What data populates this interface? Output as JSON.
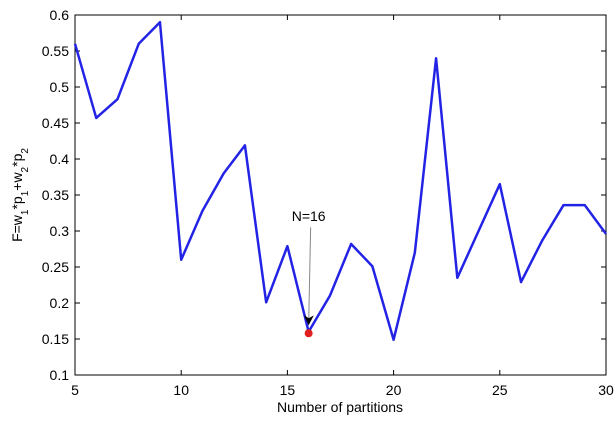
{
  "chart_data": {
    "type": "line",
    "xlabel": "Number of partitions",
    "ylabel_parts": [
      "F=w",
      "1",
      "*p",
      "1",
      "+w",
      "2",
      "*p",
      "2"
    ],
    "x": [
      5,
      6,
      7,
      8,
      9,
      10,
      11,
      12,
      13,
      14,
      15,
      16,
      17,
      18,
      19,
      20,
      21,
      22,
      23,
      24,
      25,
      26,
      27,
      28,
      29,
      30
    ],
    "series": [
      {
        "color": "#2323e6",
        "values": [
          0.56,
          0.457,
          0.483,
          0.56,
          0.59,
          0.26,
          0.328,
          0.38,
          0.419,
          0.201,
          0.279,
          0.16,
          0.21,
          0.282,
          0.251,
          0.149,
          0.27,
          0.54,
          0.235,
          0.3,
          0.365,
          0.229,
          0.287,
          0.336,
          0.336,
          0.296
        ]
      }
    ],
    "highlight": {
      "text": "N=16",
      "x": 16,
      "y": 0.158,
      "color": "#e02020"
    },
    "xlim": [
      5,
      30
    ],
    "xticks": [
      5,
      10,
      15,
      20,
      25,
      30
    ],
    "ylim": [
      0.1,
      0.6
    ],
    "yticks": [
      0.1,
      0.15,
      0.2,
      0.25,
      0.3,
      0.35,
      0.4,
      0.45,
      0.5,
      0.55,
      0.6
    ]
  }
}
